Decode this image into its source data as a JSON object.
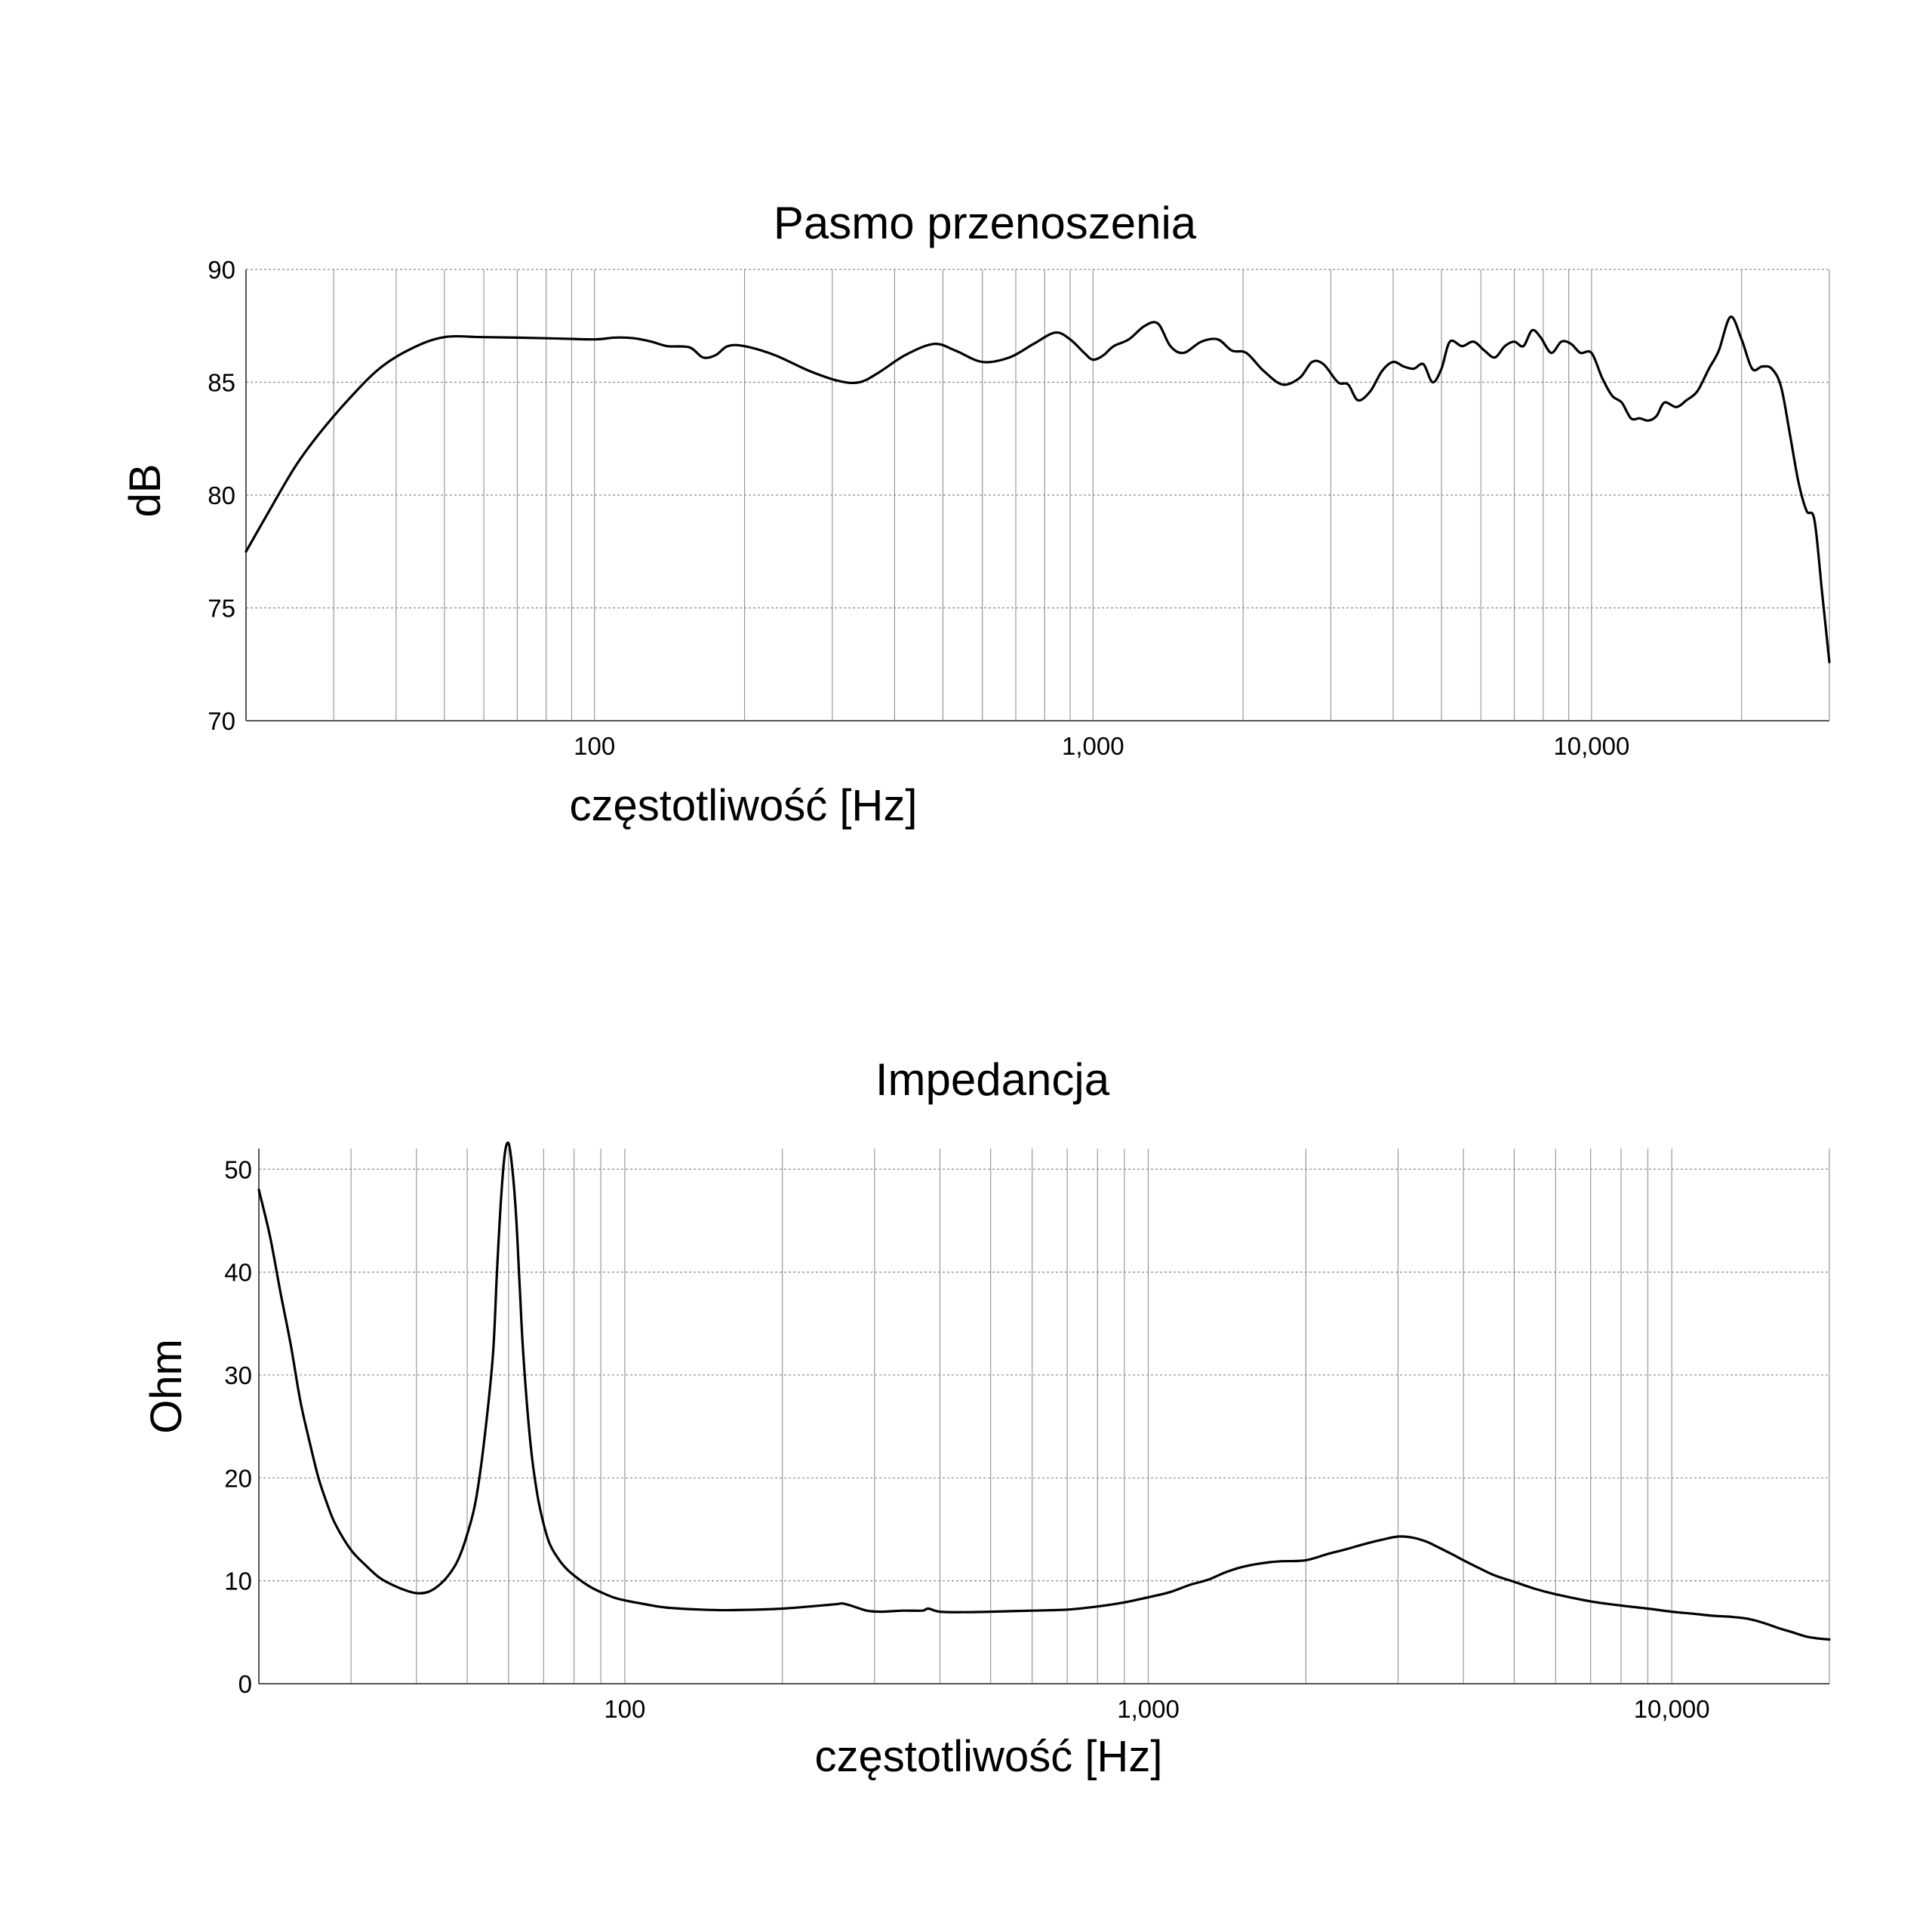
{
  "chart_data": [
    {
      "type": "line",
      "title": "Pasmo przenoszenia",
      "xlabel": "częstotliwość [Hz]",
      "ylabel": "dB",
      "x_scale": "log",
      "xlim": [
        20,
        30000
      ],
      "ylim": [
        70,
        90
      ],
      "y_ticks": [
        70,
        75,
        80,
        85,
        90
      ],
      "x_ticks": [
        {
          "value": 100,
          "label": "100"
        },
        {
          "value": 1000,
          "label": "1,000"
        },
        {
          "value": 10000,
          "label": "10,000"
        }
      ],
      "grid": true,
      "series": [
        {
          "x": [
            20,
            22,
            25,
            28,
            32,
            37,
            43,
            50,
            60,
            80,
            100,
            110,
            120,
            130,
            140,
            155,
            165,
            175,
            185,
            200,
            230,
            270,
            310,
            340,
            370,
            420,
            480,
            530,
            600,
            680,
            760,
            840,
            900,
            960,
            1000,
            1050,
            1100,
            1180,
            1270,
            1350,
            1430,
            1520,
            1650,
            1780,
            1900,
            2030,
            2200,
            2400,
            2600,
            2750,
            2900,
            3100,
            3250,
            3400,
            3600,
            3800,
            4000,
            4200,
            4400,
            4600,
            4800,
            5000,
            5200,
            5500,
            5800,
            6100,
            6400,
            6700,
            7000,
            7300,
            7600,
            7900,
            8300,
            8700,
            9100,
            9500,
            10000,
            10500,
            11000,
            11500,
            12000,
            12500,
            13000,
            13500,
            14000,
            14800,
            15500,
            16300,
            17200,
            18000,
            19000,
            20000,
            21000,
            22000,
            23000,
            24000,
            25000,
            26000,
            27000,
            28000,
            29000,
            30000
          ],
          "y": [
            77.5,
            79.1,
            81.2,
            82.7,
            84.2,
            85.6,
            86.5,
            87.0,
            87.0,
            86.95,
            86.9,
            86.98,
            86.95,
            86.8,
            86.6,
            86.55,
            86.1,
            86.2,
            86.6,
            86.6,
            86.2,
            85.5,
            85.05,
            85.0,
            85.4,
            86.2,
            86.7,
            86.4,
            85.9,
            86.1,
            86.7,
            87.2,
            86.9,
            86.3,
            86.0,
            86.2,
            86.6,
            86.9,
            87.5,
            87.6,
            86.6,
            86.3,
            86.8,
            86.9,
            86.4,
            86.3,
            85.5,
            84.9,
            85.2,
            85.9,
            85.8,
            85.0,
            84.9,
            84.2,
            84.6,
            85.5,
            85.9,
            85.7,
            85.6,
            85.8,
            85.0,
            85.6,
            86.8,
            86.6,
            86.8,
            86.4,
            86.1,
            86.6,
            86.8,
            86.6,
            87.3,
            87.0,
            86.3,
            86.8,
            86.7,
            86.3,
            86.3,
            85.2,
            84.4,
            84.1,
            83.4,
            83.4,
            83.3,
            83.5,
            84.1,
            83.9,
            84.2,
            84.6,
            85.6,
            86.4,
            87.9,
            86.9,
            85.6,
            85.7,
            85.6,
            84.8,
            82.7,
            80.6,
            79.3,
            78.9,
            75.7,
            72.6
          ]
        }
      ]
    },
    {
      "type": "line",
      "title": "Impedancja",
      "xlabel": "częstotliwość [Hz]",
      "ylabel": "Ohm",
      "x_scale": "log",
      "xlim": [
        20,
        20000
      ],
      "ylim": [
        0,
        52
      ],
      "y_ticks": [
        0,
        10,
        20,
        30,
        40,
        50
      ],
      "x_ticks": [
        {
          "value": 100,
          "label": "100"
        },
        {
          "value": 1000,
          "label": "1,000"
        },
        {
          "value": 10000,
          "label": "10,000"
        }
      ],
      "grid": true,
      "series": [
        {
          "x": [
            20,
            21,
            22,
            23,
            24,
            25,
            26,
            27,
            28,
            30,
            32,
            34,
            36,
            38,
            40,
            42,
            44,
            46,
            48,
            50,
            52,
            54,
            56,
            57,
            58,
            59,
            60,
            61,
            62,
            63,
            64,
            66,
            68,
            70,
            72,
            75,
            78,
            82,
            86,
            90,
            95,
            100,
            110,
            120,
            140,
            160,
            200,
            250,
            260,
            270,
            290,
            310,
            340,
            370,
            380,
            400,
            450,
            500,
            600,
            700,
            800,
            900,
            1000,
            1100,
            1200,
            1300,
            1400,
            1500,
            1600,
            1700,
            1800,
            2000,
            2200,
            2400,
            2600,
            2800,
            3000,
            3200,
            3400,
            3600,
            3800,
            4000,
            4300,
            4600,
            5000,
            5500,
            6000,
            7000,
            8000,
            9000,
            10000,
            11000,
            12000,
            13000,
            14000,
            15000,
            16000,
            17000,
            18000,
            19000,
            20000
          ],
          "y": [
            48.0,
            43.5,
            38.0,
            33.0,
            27.5,
            23.5,
            20.0,
            17.5,
            15.5,
            13.0,
            11.5,
            10.3,
            9.6,
            9.1,
            8.8,
            8.9,
            9.5,
            10.5,
            12.0,
            14.5,
            18.0,
            24.0,
            32.0,
            40.0,
            47.0,
            51.5,
            52.5,
            50.0,
            45.5,
            38.5,
            32.0,
            23.5,
            18.5,
            15.5,
            13.5,
            12.0,
            11.0,
            10.1,
            9.4,
            8.9,
            8.4,
            8.1,
            7.7,
            7.4,
            7.2,
            7.15,
            7.3,
            7.7,
            7.8,
            7.6,
            7.1,
            7.0,
            7.1,
            7.1,
            7.3,
            7.0,
            6.95,
            7.0,
            7.1,
            7.2,
            7.5,
            7.9,
            8.4,
            8.9,
            9.6,
            10.1,
            10.8,
            11.3,
            11.6,
            11.8,
            11.9,
            12.0,
            12.6,
            13.1,
            13.6,
            14.0,
            14.3,
            14.2,
            13.8,
            13.2,
            12.6,
            12.0,
            11.2,
            10.5,
            9.9,
            9.2,
            8.7,
            8.0,
            7.6,
            7.3,
            7.0,
            6.8,
            6.6,
            6.5,
            6.3,
            5.9,
            5.4,
            5.0,
            4.6,
            4.4,
            4.3
          ]
        }
      ]
    }
  ]
}
